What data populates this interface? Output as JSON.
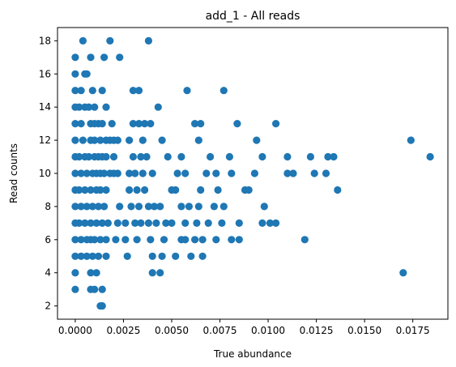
{
  "chart_data": {
    "type": "scatter",
    "title": "add_1 - All reads",
    "xlabel": "True abundance",
    "ylabel": "Read counts",
    "xlim": [
      -0.00092,
      0.01932
    ],
    "ylim": [
      1.2,
      18.8
    ],
    "x_ticks": [
      "0.0000",
      "0.0025",
      "0.0050",
      "0.0075",
      "0.0100",
      "0.0125",
      "0.0150",
      "0.0175"
    ],
    "x_tick_values": [
      0,
      0.0025,
      0.005,
      0.0075,
      0.01,
      0.0125,
      0.015,
      0.0175
    ],
    "y_ticks": [
      "2",
      "4",
      "6",
      "8",
      "10",
      "12",
      "14",
      "16",
      "18"
    ],
    "y_tick_values": [
      2,
      4,
      6,
      8,
      10,
      12,
      14,
      16,
      18
    ],
    "grid": false,
    "legend": false,
    "marker_color": "#1f77b4",
    "series": [
      {
        "points": [
          [
            0.0004,
            18
          ],
          [
            0.0018,
            18
          ],
          [
            0.0038,
            18
          ],
          [
            0.0,
            17
          ],
          [
            0.0008,
            17
          ],
          [
            0.0015,
            17
          ],
          [
            0.0023,
            17
          ],
          [
            0.0,
            16
          ],
          [
            0.0005,
            16
          ],
          [
            0.0006,
            16
          ],
          [
            0.0,
            15
          ],
          [
            0.0003,
            15
          ],
          [
            0.0009,
            15
          ],
          [
            0.0014,
            15
          ],
          [
            0.003,
            15
          ],
          [
            0.0033,
            15
          ],
          [
            0.0058,
            15
          ],
          [
            0.0077,
            15
          ],
          [
            0.0,
            14
          ],
          [
            0.0002,
            14
          ],
          [
            0.0005,
            14
          ],
          [
            0.0007,
            14
          ],
          [
            0.001,
            14
          ],
          [
            0.0016,
            14
          ],
          [
            0.0043,
            14
          ],
          [
            0.0,
            13
          ],
          [
            0.0003,
            13
          ],
          [
            0.0008,
            13
          ],
          [
            0.001,
            13
          ],
          [
            0.0012,
            13
          ],
          [
            0.0014,
            13
          ],
          [
            0.0019,
            13
          ],
          [
            0.003,
            13
          ],
          [
            0.0033,
            13
          ],
          [
            0.0036,
            13
          ],
          [
            0.0039,
            13
          ],
          [
            0.0062,
            13
          ],
          [
            0.0065,
            13
          ],
          [
            0.0084,
            13
          ],
          [
            0.0104,
            13
          ],
          [
            0.0,
            12
          ],
          [
            0.0004,
            12
          ],
          [
            0.0008,
            12
          ],
          [
            0.001,
            12
          ],
          [
            0.0013,
            12
          ],
          [
            0.0016,
            12
          ],
          [
            0.0018,
            12
          ],
          [
            0.002,
            12
          ],
          [
            0.0022,
            12
          ],
          [
            0.0028,
            12
          ],
          [
            0.0035,
            12
          ],
          [
            0.0045,
            12
          ],
          [
            0.0064,
            12
          ],
          [
            0.0094,
            12
          ],
          [
            0.0174,
            12
          ],
          [
            0.0,
            11
          ],
          [
            0.0002,
            11
          ],
          [
            0.0005,
            11
          ],
          [
            0.0007,
            11
          ],
          [
            0.001,
            11
          ],
          [
            0.0012,
            11
          ],
          [
            0.0014,
            11
          ],
          [
            0.0016,
            11
          ],
          [
            0.002,
            11
          ],
          [
            0.003,
            11
          ],
          [
            0.0034,
            11
          ],
          [
            0.0037,
            11
          ],
          [
            0.0048,
            11
          ],
          [
            0.0055,
            11
          ],
          [
            0.007,
            11
          ],
          [
            0.008,
            11
          ],
          [
            0.0097,
            11
          ],
          [
            0.011,
            11
          ],
          [
            0.0122,
            11
          ],
          [
            0.0131,
            11
          ],
          [
            0.0134,
            11
          ],
          [
            0.0184,
            11
          ],
          [
            0.0,
            10
          ],
          [
            0.0003,
            10
          ],
          [
            0.0006,
            10
          ],
          [
            0.0009,
            10
          ],
          [
            0.0011,
            10
          ],
          [
            0.0013,
            10
          ],
          [
            0.0015,
            10
          ],
          [
            0.0018,
            10
          ],
          [
            0.002,
            10
          ],
          [
            0.0022,
            10
          ],
          [
            0.0028,
            10
          ],
          [
            0.0031,
            10
          ],
          [
            0.0035,
            10
          ],
          [
            0.004,
            10
          ],
          [
            0.0053,
            10
          ],
          [
            0.0057,
            10
          ],
          [
            0.0068,
            10
          ],
          [
            0.0073,
            10
          ],
          [
            0.0081,
            10
          ],
          [
            0.0093,
            10
          ],
          [
            0.011,
            10
          ],
          [
            0.0113,
            10
          ],
          [
            0.0124,
            10
          ],
          [
            0.013,
            10
          ],
          [
            0.0,
            9
          ],
          [
            0.0002,
            9
          ],
          [
            0.0005,
            9
          ],
          [
            0.0008,
            9
          ],
          [
            0.0011,
            9
          ],
          [
            0.0013,
            9
          ],
          [
            0.0016,
            9
          ],
          [
            0.0028,
            9
          ],
          [
            0.0032,
            9
          ],
          [
            0.0036,
            9
          ],
          [
            0.005,
            9
          ],
          [
            0.0052,
            9
          ],
          [
            0.0065,
            9
          ],
          [
            0.0074,
            9
          ],
          [
            0.0088,
            9
          ],
          [
            0.009,
            9
          ],
          [
            0.0136,
            9
          ],
          [
            0.0,
            8
          ],
          [
            0.0003,
            8
          ],
          [
            0.0006,
            8
          ],
          [
            0.0009,
            8
          ],
          [
            0.0012,
            8
          ],
          [
            0.0015,
            8
          ],
          [
            0.0023,
            8
          ],
          [
            0.0029,
            8
          ],
          [
            0.0033,
            8
          ],
          [
            0.0038,
            8
          ],
          [
            0.0041,
            8
          ],
          [
            0.0044,
            8
          ],
          [
            0.0055,
            8
          ],
          [
            0.0059,
            8
          ],
          [
            0.0064,
            8
          ],
          [
            0.0072,
            8
          ],
          [
            0.0077,
            8
          ],
          [
            0.0098,
            8
          ],
          [
            0.0,
            7
          ],
          [
            0.0002,
            7
          ],
          [
            0.0005,
            7
          ],
          [
            0.0008,
            7
          ],
          [
            0.0011,
            7
          ],
          [
            0.0014,
            7
          ],
          [
            0.0017,
            7
          ],
          [
            0.0022,
            7
          ],
          [
            0.0026,
            7
          ],
          [
            0.0031,
            7
          ],
          [
            0.0034,
            7
          ],
          [
            0.0038,
            7
          ],
          [
            0.0042,
            7
          ],
          [
            0.0047,
            7
          ],
          [
            0.005,
            7
          ],
          [
            0.0057,
            7
          ],
          [
            0.0063,
            7
          ],
          [
            0.0069,
            7
          ],
          [
            0.0076,
            7
          ],
          [
            0.0085,
            7
          ],
          [
            0.0097,
            7
          ],
          [
            0.0101,
            7
          ],
          [
            0.0104,
            7
          ],
          [
            0.0,
            6
          ],
          [
            0.0003,
            6
          ],
          [
            0.0006,
            6
          ],
          [
            0.0008,
            6
          ],
          [
            0.001,
            6
          ],
          [
            0.0013,
            6
          ],
          [
            0.0016,
            6
          ],
          [
            0.0021,
            6
          ],
          [
            0.0026,
            6
          ],
          [
            0.0032,
            6
          ],
          [
            0.0039,
            6
          ],
          [
            0.0046,
            6
          ],
          [
            0.0055,
            6
          ],
          [
            0.0057,
            6
          ],
          [
            0.0062,
            6
          ],
          [
            0.0066,
            6
          ],
          [
            0.0073,
            6
          ],
          [
            0.0081,
            6
          ],
          [
            0.0085,
            6
          ],
          [
            0.0119,
            6
          ],
          [
            0.0,
            5
          ],
          [
            0.0003,
            5
          ],
          [
            0.0006,
            5
          ],
          [
            0.0009,
            5
          ],
          [
            0.0012,
            5
          ],
          [
            0.0016,
            5
          ],
          [
            0.0027,
            5
          ],
          [
            0.004,
            5
          ],
          [
            0.0045,
            5
          ],
          [
            0.0052,
            5
          ],
          [
            0.006,
            5
          ],
          [
            0.0066,
            5
          ],
          [
            0.0,
            4
          ],
          [
            0.0008,
            4
          ],
          [
            0.0011,
            4
          ],
          [
            0.004,
            4
          ],
          [
            0.0044,
            4
          ],
          [
            0.017,
            4
          ],
          [
            0.0,
            3
          ],
          [
            0.0008,
            3
          ],
          [
            0.001,
            3
          ],
          [
            0.0014,
            3
          ],
          [
            0.0013,
            2
          ],
          [
            0.0014,
            2
          ]
        ]
      }
    ]
  }
}
